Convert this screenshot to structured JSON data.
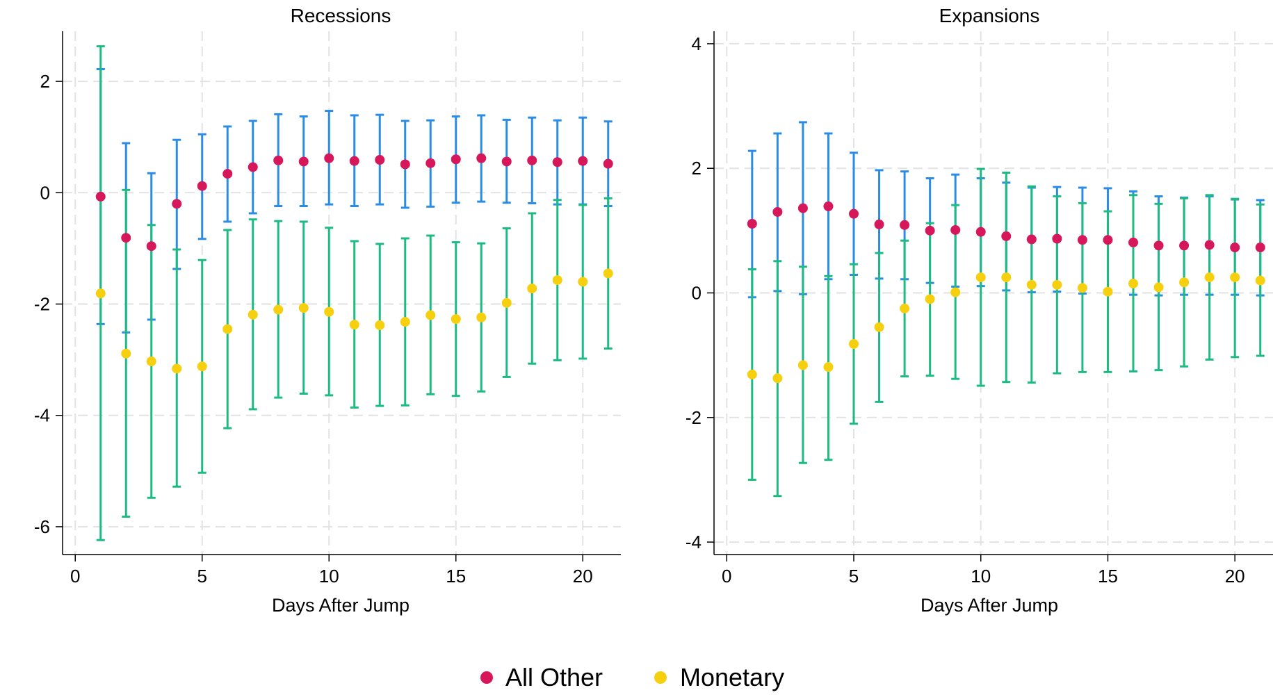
{
  "chart_data": [
    {
      "type": "scatter",
      "title": "Recessions",
      "xlabel": "Days After Jump",
      "ylabel": "",
      "xlim": [
        -0.5,
        21.5
      ],
      "ylim": [
        -6.5,
        2.9
      ],
      "xticks": [
        0,
        5,
        10,
        15,
        20
      ],
      "yticks": [
        -6,
        -4,
        -2,
        0,
        2
      ],
      "grid": true,
      "x": [
        1,
        2,
        3,
        4,
        5,
        6,
        7,
        8,
        9,
        10,
        11,
        12,
        13,
        14,
        15,
        16,
        17,
        18,
        19,
        20,
        21
      ],
      "series": [
        {
          "name": "All Other",
          "values": [
            -0.07,
            -0.81,
            -0.96,
            -0.2,
            0.12,
            0.34,
            0.46,
            0.58,
            0.56,
            0.62,
            0.57,
            0.59,
            0.51,
            0.53,
            0.6,
            0.62,
            0.56,
            0.58,
            0.55,
            0.57,
            0.52
          ],
          "ci_low": [
            -2.36,
            -2.51,
            -2.28,
            -1.37,
            -0.83,
            -0.52,
            -0.37,
            -0.24,
            -0.24,
            -0.21,
            -0.24,
            -0.21,
            -0.27,
            -0.25,
            -0.18,
            -0.16,
            -0.18,
            -0.19,
            -0.21,
            -0.21,
            -0.24
          ],
          "ci_high": [
            2.22,
            0.89,
            0.35,
            0.95,
            1.05,
            1.19,
            1.29,
            1.41,
            1.37,
            1.47,
            1.39,
            1.4,
            1.29,
            1.3,
            1.37,
            1.39,
            1.31,
            1.35,
            1.3,
            1.35,
            1.28
          ]
        },
        {
          "name": "Monetary",
          "values": [
            -1.81,
            -2.89,
            -3.03,
            -3.16,
            -3.12,
            -2.45,
            -2.19,
            -2.1,
            -2.07,
            -2.14,
            -2.37,
            -2.38,
            -2.32,
            -2.2,
            -2.27,
            -2.24,
            -1.98,
            -1.72,
            -1.57,
            -1.6,
            -1.45
          ],
          "ci_low": [
            -6.24,
            -5.82,
            -5.48,
            -5.28,
            -5.03,
            -4.23,
            -3.89,
            -3.68,
            -3.61,
            -3.64,
            -3.86,
            -3.83,
            -3.82,
            -3.62,
            -3.65,
            -3.57,
            -3.31,
            -3.07,
            -3.01,
            -2.98,
            -2.8
          ],
          "ci_high": [
            2.63,
            0.05,
            -0.58,
            -1.02,
            -1.21,
            -0.67,
            -0.48,
            -0.51,
            -0.52,
            -0.63,
            -0.87,
            -0.92,
            -0.82,
            -0.77,
            -0.89,
            -0.91,
            -0.64,
            -0.37,
            -0.13,
            -0.22,
            -0.1
          ]
        }
      ]
    },
    {
      "type": "scatter",
      "title": "Expansions",
      "xlabel": "Days After Jump",
      "ylabel": "",
      "xlim": [
        -0.5,
        21.5
      ],
      "ylim": [
        -4.2,
        4.2
      ],
      "xticks": [
        0,
        5,
        10,
        15,
        20
      ],
      "yticks": [
        -4,
        -2,
        0,
        2,
        4
      ],
      "grid": true,
      "x": [
        1,
        2,
        3,
        4,
        5,
        6,
        7,
        8,
        9,
        10,
        11,
        12,
        13,
        14,
        15,
        16,
        17,
        18,
        19,
        20,
        21
      ],
      "series": [
        {
          "name": "All Other",
          "values": [
            1.11,
            1.3,
            1.36,
            1.39,
            1.27,
            1.1,
            1.09,
            1.0,
            1.01,
            0.98,
            0.91,
            0.86,
            0.87,
            0.85,
            0.85,
            0.81,
            0.76,
            0.76,
            0.77,
            0.73,
            0.73
          ],
          "ci_low": [
            -0.07,
            0.03,
            -0.02,
            0.22,
            0.29,
            0.23,
            0.22,
            0.16,
            0.1,
            0.11,
            0.04,
            0.01,
            0.02,
            -0.01,
            -0.01,
            -0.03,
            -0.04,
            -0.03,
            -0.03,
            -0.03,
            -0.04
          ],
          "ci_high": [
            2.28,
            2.56,
            2.74,
            2.56,
            2.25,
            1.97,
            1.95,
            1.84,
            1.9,
            1.84,
            1.77,
            1.69,
            1.7,
            1.69,
            1.68,
            1.63,
            1.55,
            1.53,
            1.55,
            1.5,
            1.49
          ]
        },
        {
          "name": "Monetary",
          "values": [
            -1.31,
            -1.37,
            -1.16,
            -1.19,
            -0.82,
            -0.55,
            -0.25,
            -0.1,
            0.01,
            0.25,
            0.25,
            0.13,
            0.13,
            0.08,
            0.02,
            0.15,
            0.09,
            0.17,
            0.25,
            0.25,
            0.2
          ],
          "ci_low": [
            -3.0,
            -3.26,
            -2.73,
            -2.68,
            -2.1,
            -1.75,
            -1.34,
            -1.33,
            -1.38,
            -1.49,
            -1.43,
            -1.44,
            -1.29,
            -1.27,
            -1.27,
            -1.26,
            -1.24,
            -1.18,
            -1.07,
            -1.03,
            -1.01
          ],
          "ci_high": [
            0.38,
            0.51,
            0.42,
            0.27,
            0.46,
            0.64,
            0.84,
            1.12,
            1.41,
            1.99,
            1.93,
            1.71,
            1.55,
            1.44,
            1.31,
            1.57,
            1.43,
            1.52,
            1.57,
            1.51,
            1.42
          ]
        }
      ]
    }
  ],
  "legend": {
    "placement": "bottom-center",
    "items": [
      {
        "label": "All Other",
        "color": "#d6175a"
      },
      {
        "label": "Monetary",
        "color": "#f6cf0f"
      }
    ]
  },
  "colors": {
    "all_other_point": "#d6175a",
    "all_other_ci": "#2a8ce4",
    "monetary_point": "#f6cf0f",
    "monetary_ci": "#1dbb82",
    "grid": "#e2e2e2",
    "axis": "#000000"
  }
}
